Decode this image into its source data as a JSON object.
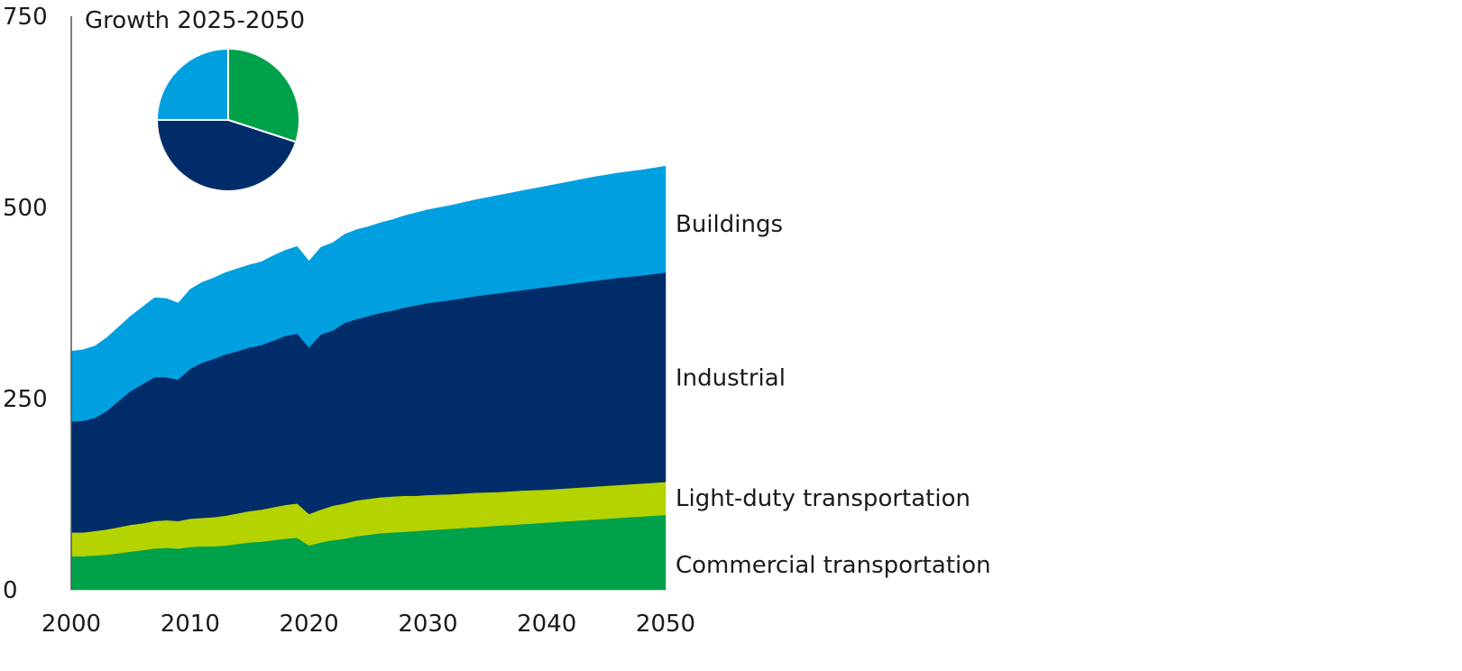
{
  "chart_data": [
    {
      "type": "area",
      "stacked": true,
      "title": "",
      "xlabel": "",
      "ylabel": "",
      "xlim": [
        2000,
        2050
      ],
      "ylim": [
        0,
        750
      ],
      "x_ticks": [
        "2000",
        "2010",
        "2020",
        "2030",
        "2040",
        "2050"
      ],
      "y_ticks": [
        "0",
        "250",
        "500",
        "750"
      ],
      "grid": false,
      "legend": "direct labels at right end",
      "x": [
        2000,
        2001,
        2002,
        2003,
        2004,
        2005,
        2006,
        2007,
        2008,
        2009,
        2010,
        2011,
        2012,
        2013,
        2014,
        2015,
        2016,
        2017,
        2018,
        2019,
        2020,
        2021,
        2022,
        2023,
        2024,
        2025,
        2026,
        2027,
        2028,
        2029,
        2030,
        2032,
        2034,
        2036,
        2038,
        2040,
        2042,
        2044,
        2046,
        2048,
        2050
      ],
      "series": [
        {
          "name": "Commercial transportation",
          "color": "#00a14b",
          "values": [
            44,
            44,
            45,
            46,
            48,
            50,
            52,
            54,
            55,
            54,
            56,
            57,
            57,
            58,
            60,
            62,
            63,
            65,
            67,
            68,
            58,
            62,
            65,
            67,
            70,
            72,
            74,
            75,
            76,
            77,
            78,
            80,
            82,
            84,
            86,
            88,
            90,
            92,
            94,
            96,
            98
          ]
        },
        {
          "name": "Light-duty transportation",
          "color": "#b5d300",
          "values": [
            31,
            31,
            32,
            33,
            34,
            35,
            35,
            36,
            36,
            36,
            37,
            37,
            38,
            39,
            40,
            41,
            42,
            43,
            44,
            45,
            41,
            43,
            45,
            46,
            47,
            47,
            47,
            47,
            47,
            46,
            46,
            45,
            45,
            44,
            44,
            43,
            43,
            43,
            43,
            43,
            43
          ]
        },
        {
          "name": "Industrial",
          "color": "#002d6a",
          "values": [
            145,
            146,
            148,
            155,
            165,
            175,
            182,
            188,
            187,
            185,
            196,
            203,
            207,
            211,
            212,
            214,
            215,
            218,
            221,
            222,
            218,
            229,
            229,
            236,
            237,
            239,
            241,
            243,
            246,
            249,
            251,
            254,
            257,
            260,
            262,
            265,
            267,
            269,
            271,
            272,
            274
          ]
        },
        {
          "name": "Buildings",
          "color": "#00a0e0",
          "values": [
            92,
            93,
            94,
            96,
            97,
            98,
            101,
            104,
            103,
            100,
            104,
            105,
            106,
            107,
            108,
            108,
            109,
            111,
            112,
            114,
            113,
            114,
            115,
            116,
            117,
            117,
            118,
            119,
            120,
            121,
            122,
            124,
            126,
            128,
            130,
            132,
            134,
            136,
            137,
            138,
            139
          ]
        }
      ],
      "labels": [
        "Buildings",
        "Industrial",
        "Light-duty transportation",
        "Commercial transportation"
      ]
    },
    {
      "type": "pie",
      "title": "Growth 2025-2050",
      "start": "top",
      "direction": "clockwise",
      "slices": [
        {
          "series": "Commercial transportation",
          "color": "#00a14b",
          "share": 0.3
        },
        {
          "series": "Industrial",
          "color": "#002d6a",
          "share": 0.45
        },
        {
          "series": "Buildings",
          "color": "#00a0e0",
          "share": 0.25
        }
      ]
    }
  ]
}
